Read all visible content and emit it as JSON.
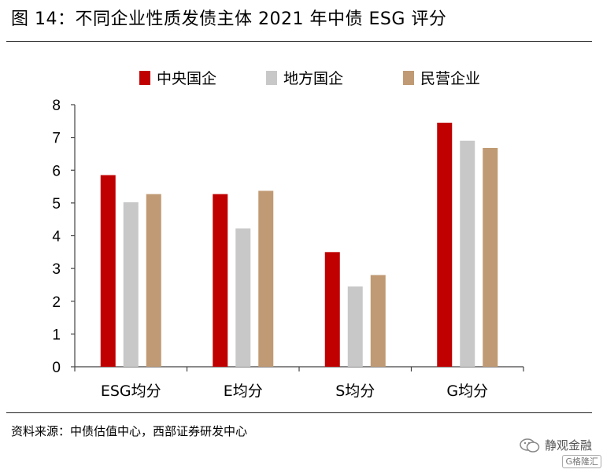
{
  "title": "图 14：不同企业性质发债主体 2021 年中债 ESG 评分",
  "source": "资料来源：中债估值中心，西部证券研发中心",
  "watermark": {
    "text": "静观金融",
    "icon": "wechat-icon",
    "tag": "G格隆汇"
  },
  "colors": {
    "central_soe": "#C00000",
    "local_soe": "#C8C8C8",
    "private": "#C09A74",
    "axis": "#444444"
  },
  "chart_data": {
    "type": "bar",
    "title": "",
    "xlabel": "",
    "ylabel": "",
    "ylim": [
      0,
      8
    ],
    "yticks": [
      0,
      1,
      2,
      3,
      4,
      5,
      6,
      7,
      8
    ],
    "grid": false,
    "legend_position": "top",
    "categories": [
      "ESG均分",
      "E均分",
      "S均分",
      "G均分"
    ],
    "series": [
      {
        "name": "中央国企",
        "color": "#C00000",
        "values": [
          5.85,
          5.27,
          3.5,
          7.45
        ]
      },
      {
        "name": "地方国企",
        "color": "#C8C8C8",
        "values": [
          5.02,
          4.22,
          2.45,
          6.9
        ]
      },
      {
        "name": "民营企业",
        "color": "#C09A74",
        "values": [
          5.27,
          5.37,
          2.8,
          6.68
        ]
      }
    ]
  }
}
